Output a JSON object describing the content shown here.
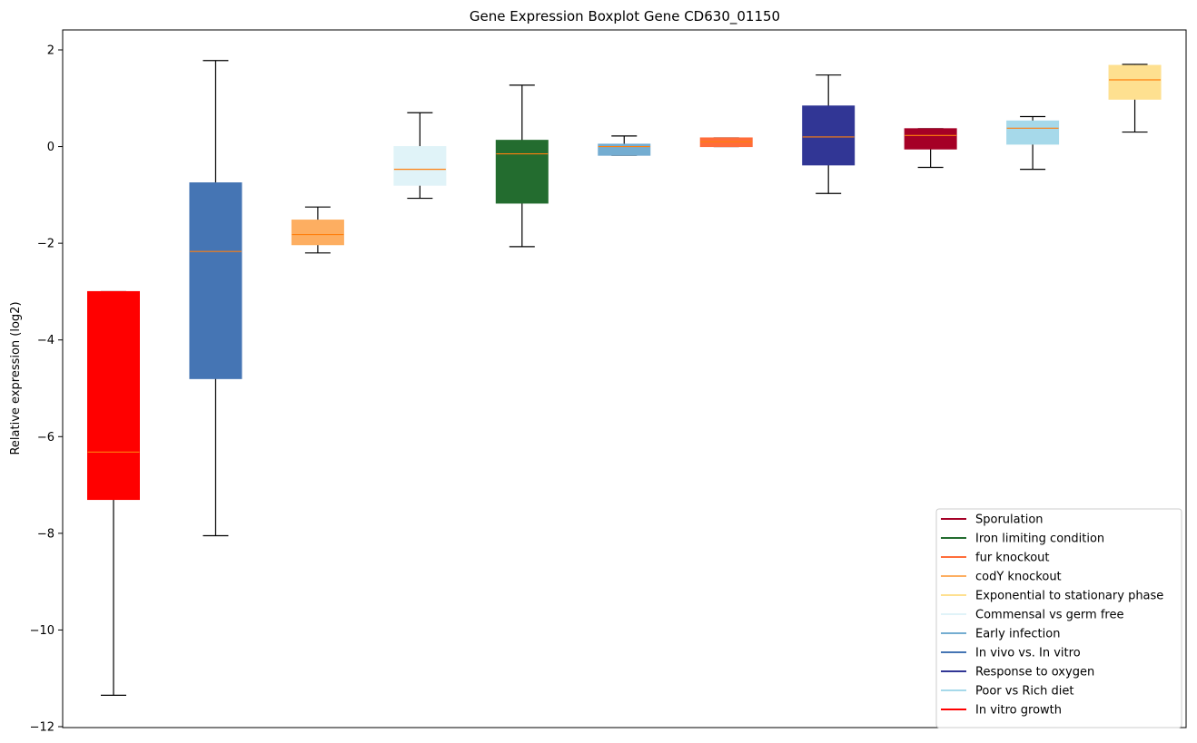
{
  "chart_data": {
    "type": "boxplot",
    "title": "Gene Expression Boxplot Gene CD630_01150",
    "xlabel": "",
    "ylabel": "Relative expression (log2)",
    "ylim": [
      -12,
      2.4
    ],
    "yticks": [
      2,
      0,
      -2,
      -4,
      -6,
      -8,
      -10,
      -12
    ],
    "ytick_labels": [
      "2",
      "0",
      "−2",
      "−4",
      "−6",
      "−8",
      "−10",
      "−12"
    ],
    "median_color": "#ff7f0e",
    "boxes": [
      {
        "name": "In vitro growth",
        "color": "#ff0000",
        "whisker_low": -11.35,
        "q1": -7.3,
        "median": -6.32,
        "q3": -3.0,
        "whisker_high": -3.0
      },
      {
        "name": "In vivo vs. In vitro",
        "color": "#4575b4",
        "whisker_low": -8.05,
        "q1": -4.8,
        "median": -2.17,
        "q3": -0.75,
        "whisker_high": 1.78
      },
      {
        "name": "codY knockout",
        "color": "#fdae61",
        "whisker_low": -2.2,
        "q1": -2.03,
        "median": -1.82,
        "q3": -1.52,
        "whisker_high": -1.25
      },
      {
        "name": "Commensal vs germ free",
        "color": "#e0f3f8",
        "whisker_low": -1.07,
        "q1": -0.8,
        "median": -0.47,
        "q3": 0.0,
        "whisker_high": 0.7
      },
      {
        "name": "Iron limiting condition",
        "color": "#236c2f",
        "whisker_low": -2.07,
        "q1": -1.17,
        "median": -0.15,
        "q3": 0.13,
        "whisker_high": 1.27
      },
      {
        "name": "Early infection",
        "color": "#74add1",
        "whisker_low": -0.18,
        "q1": -0.18,
        "median": 0.0,
        "q3": 0.05,
        "whisker_high": 0.22
      },
      {
        "name": "fur knockout",
        "color": "#ff6d3a",
        "whisker_low": 0.0,
        "q1": 0.0,
        "median": 0.1,
        "q3": 0.18,
        "whisker_high": 0.18
      },
      {
        "name": "Response to oxygen",
        "color": "#313695",
        "whisker_low": -0.97,
        "q1": -0.38,
        "median": 0.2,
        "q3": 0.84,
        "whisker_high": 1.48
      },
      {
        "name": "Sporulation",
        "color": "#a50026",
        "whisker_low": -0.43,
        "q1": -0.05,
        "median": 0.23,
        "q3": 0.37,
        "whisker_high": 0.37
      },
      {
        "name": "Poor vs Rich diet",
        "color": "#a6d9ea",
        "whisker_low": -0.47,
        "q1": 0.05,
        "median": 0.38,
        "q3": 0.53,
        "whisker_high": 0.62
      },
      {
        "name": "Exponential to stationary phase",
        "color": "#fee090",
        "whisker_low": 0.3,
        "q1": 0.98,
        "median": 1.38,
        "q3": 1.68,
        "whisker_high": 1.7
      }
    ],
    "legend": {
      "position": "lower-right",
      "entries": [
        {
          "label": "Sporulation",
          "color": "#a50026"
        },
        {
          "label": "Iron limiting condition",
          "color": "#236c2f"
        },
        {
          "label": "fur knockout",
          "color": "#ff6d3a"
        },
        {
          "label": "codY knockout",
          "color": "#fdae61"
        },
        {
          "label": "Exponential to stationary phase",
          "color": "#fee090"
        },
        {
          "label": "Commensal vs germ free",
          "color": "#e0f3f8"
        },
        {
          "label": "Early infection",
          "color": "#74add1"
        },
        {
          "label": "In vivo vs. In vitro",
          "color": "#4575b4"
        },
        {
          "label": "Response to oxygen",
          "color": "#313695"
        },
        {
          "label": "Poor vs Rich diet",
          "color": "#a6d9ea"
        },
        {
          "label": "In vitro growth",
          "color": "#ff0000"
        }
      ]
    }
  }
}
